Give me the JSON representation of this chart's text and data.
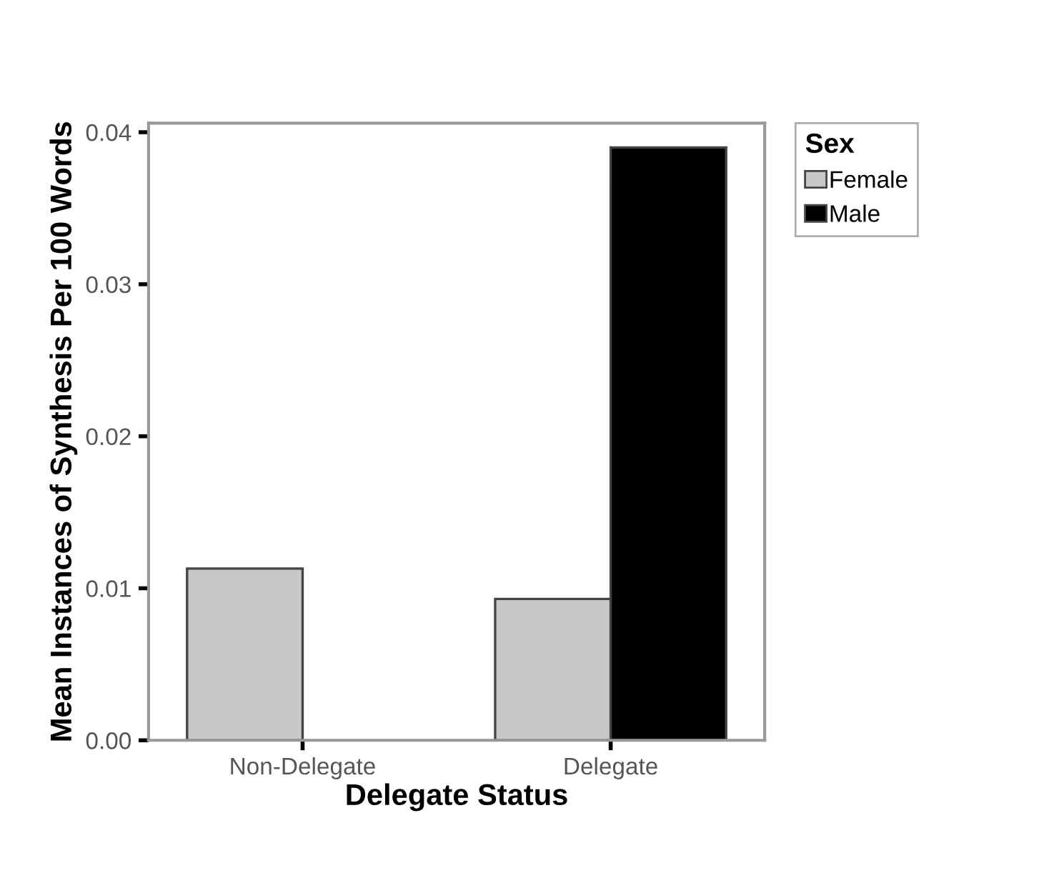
{
  "chart_data": {
    "type": "bar",
    "xlabel": "Delegate Status",
    "ylabel": "Mean Instances of Synthesis Per 100 Words",
    "legend_title": "Sex",
    "categories": [
      "Non-Delegate",
      "Delegate"
    ],
    "series": [
      {
        "name": "Female",
        "color": "#c8c8c8",
        "values": [
          0.0113,
          0.0093
        ]
      },
      {
        "name": "Male",
        "color": "#000000",
        "values": [
          null,
          0.039
        ]
      }
    ],
    "ylim": [
      0,
      0.0406
    ],
    "yticks": [
      {
        "value": 0,
        "label": "0.00"
      },
      {
        "value": 0.01,
        "label": "0.01"
      },
      {
        "value": 0.02,
        "label": "0.02"
      },
      {
        "value": 0.03,
        "label": "0.03"
      },
      {
        "value": 0.04,
        "label": "0.04"
      }
    ],
    "grid": false,
    "legend": "top right"
  }
}
